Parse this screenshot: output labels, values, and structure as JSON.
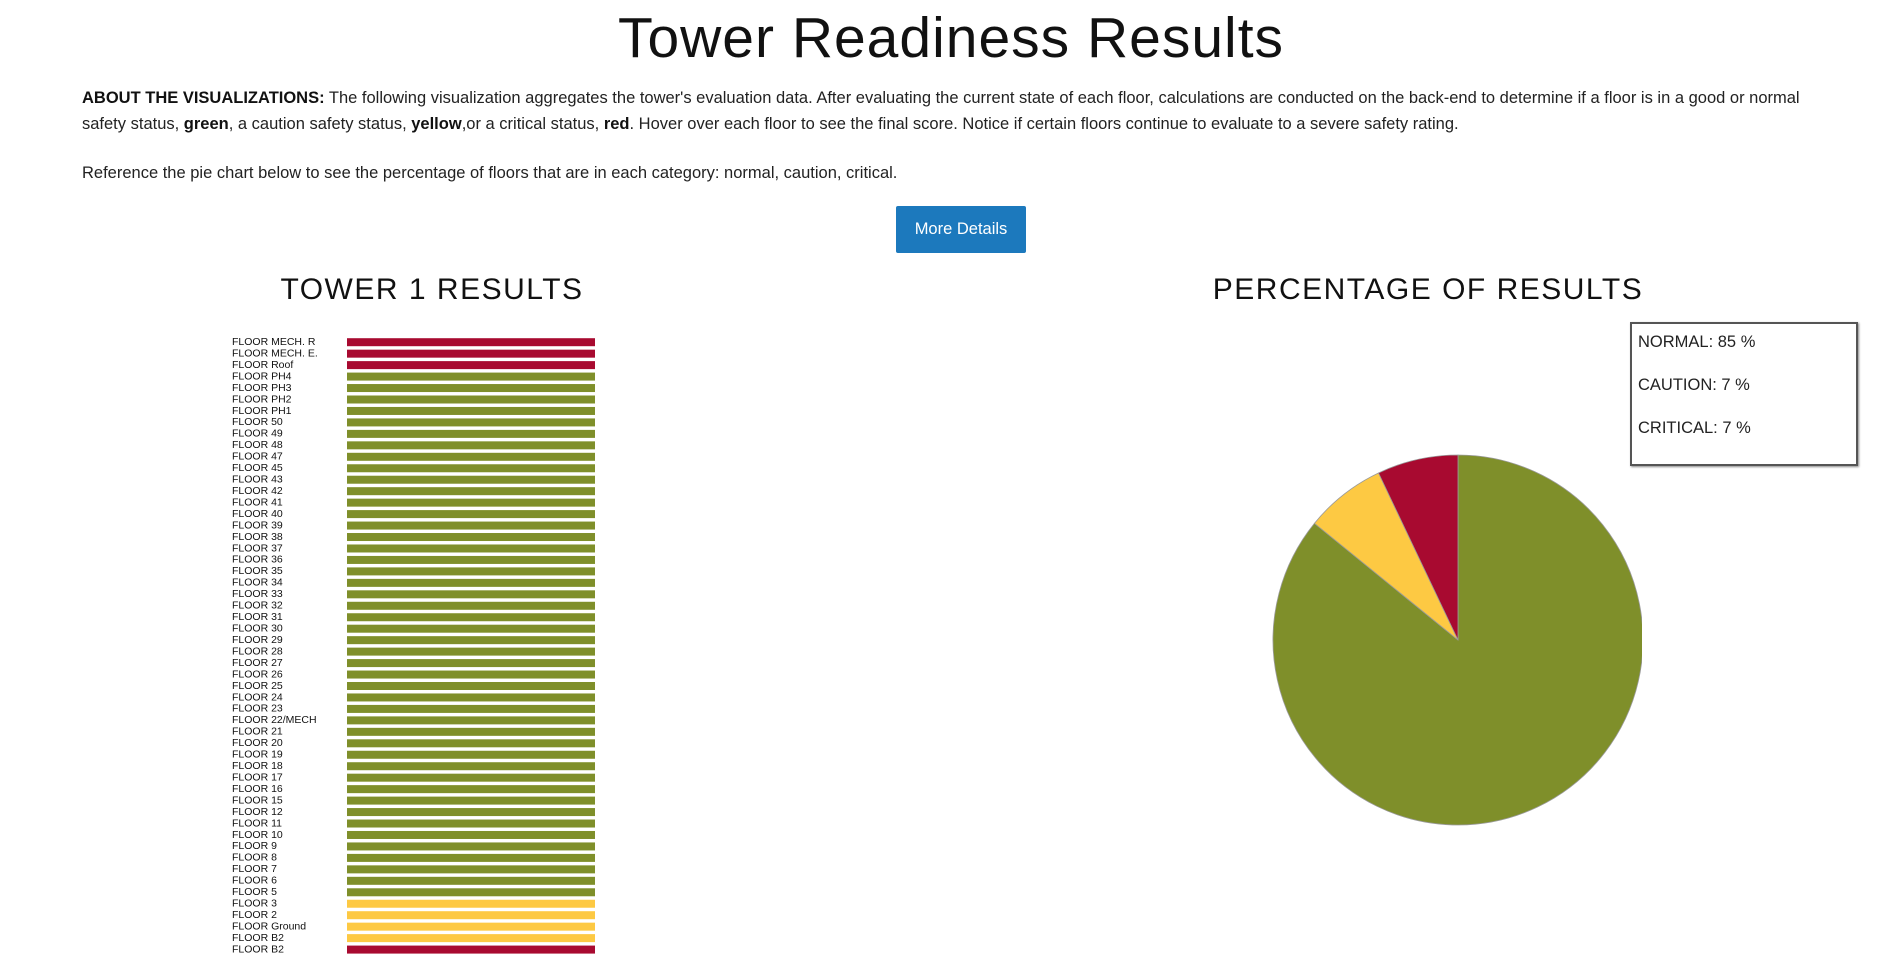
{
  "page": {
    "title": "Tower Readiness Results",
    "about_label": "ABOUT THE VISUALIZATIONS:",
    "about_text_1": " The following visualization aggregates the tower's evaluation data. After evaluating the current state of each floor, calculations are conducted on the back-end to determine if a floor is in a good or normal safety status, ",
    "green_word": "green",
    "about_text_2": ", a caution safety status, ",
    "yellow_word": "yellow",
    "about_text_3": ",or a critical status, ",
    "red_word": "red",
    "about_text_4": ". Hover over each floor to see the final score. Notice if certain floors continue to evaluate to a severe safety rating.",
    "reference_text": "Reference the pie chart below to see the percentage of floors that are in each category: normal, caution, critical.",
    "more_details_label": "More Details"
  },
  "colors": {
    "normal": "#7f8f2a",
    "caution": "#fdc943",
    "critical": "#a80a30"
  },
  "chart_data": [
    {
      "type": "bar",
      "title": "TOWER 1 RESULTS",
      "orientation": "horizontal",
      "categories": [
        "FLOOR MECH. R",
        "FLOOR MECH. E.",
        "FLOOR Roof",
        "FLOOR PH4",
        "FLOOR PH3",
        "FLOOR PH2",
        "FLOOR PH1",
        "FLOOR 50",
        "FLOOR 49",
        "FLOOR 48",
        "FLOOR 47",
        "FLOOR 45",
        "FLOOR 43",
        "FLOOR 42",
        "FLOOR 41",
        "FLOOR 40",
        "FLOOR 39",
        "FLOOR 38",
        "FLOOR 37",
        "FLOOR 36",
        "FLOOR 35",
        "FLOOR 34",
        "FLOOR 33",
        "FLOOR 32",
        "FLOOR 31",
        "FLOOR 30",
        "FLOOR 29",
        "FLOOR 28",
        "FLOOR 27",
        "FLOOR 26",
        "FLOOR 25",
        "FLOOR 24",
        "FLOOR 23",
        "FLOOR 22/MECH",
        "FLOOR 21",
        "FLOOR 20",
        "FLOOR 19",
        "FLOOR 18",
        "FLOOR 17",
        "FLOOR 16",
        "FLOOR 15",
        "FLOOR 12",
        "FLOOR 11",
        "FLOOR 10",
        "FLOOR 9",
        "FLOOR 8",
        "FLOOR 7",
        "FLOOR 6",
        "FLOOR 5",
        "FLOOR 3",
        "FLOOR 2",
        "FLOOR Ground",
        "FLOOR B2",
        "FLOOR B2"
      ],
      "status": [
        "critical",
        "critical",
        "critical",
        "normal",
        "normal",
        "normal",
        "normal",
        "normal",
        "normal",
        "normal",
        "normal",
        "normal",
        "normal",
        "normal",
        "normal",
        "normal",
        "normal",
        "normal",
        "normal",
        "normal",
        "normal",
        "normal",
        "normal",
        "normal",
        "normal",
        "normal",
        "normal",
        "normal",
        "normal",
        "normal",
        "normal",
        "normal",
        "normal",
        "normal",
        "normal",
        "normal",
        "normal",
        "normal",
        "normal",
        "normal",
        "normal",
        "normal",
        "normal",
        "normal",
        "normal",
        "normal",
        "normal",
        "normal",
        "normal",
        "caution",
        "caution",
        "caution",
        "caution",
        "critical"
      ]
    },
    {
      "type": "pie",
      "title": "PERCENTAGE OF RESULTS",
      "labels": [
        "NORMAL",
        "CAUTION",
        "CRITICAL"
      ],
      "values": [
        85,
        7,
        7
      ],
      "legend": [
        "NORMAL: 85 %",
        "CAUTION: 7 %",
        "CRITICAL: 7 %"
      ],
      "legend_placement": "top-right"
    }
  ]
}
